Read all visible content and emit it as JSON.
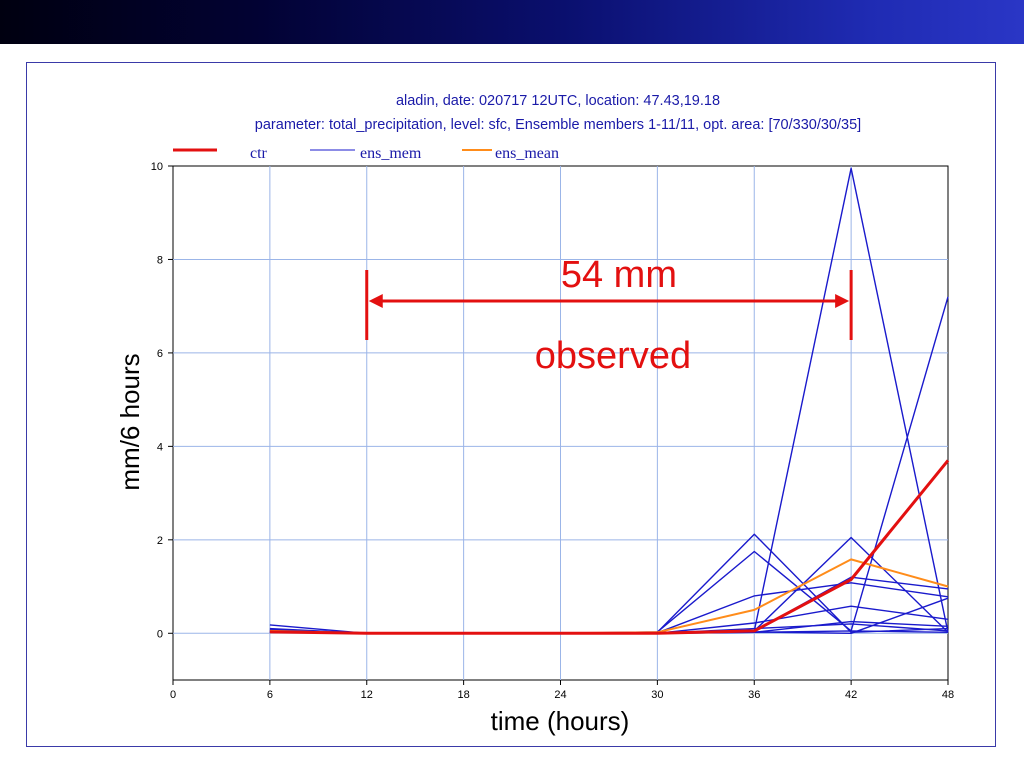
{
  "chart_data": {
    "type": "line",
    "title": "aladin, date: 020717 12UTC,   location: 47.43,19.18",
    "subtitle": "parameter: total_precipitation, level: sfc, Ensemble members 1-11/11, opt. area: [70/330/30/35]",
    "xlabel": "time (hours)",
    "ylabel": "mm/6 hours",
    "xlim": [
      0,
      48
    ],
    "ylim": [
      -1,
      10
    ],
    "x_ticks": [
      0,
      6,
      12,
      18,
      24,
      30,
      36,
      42,
      48
    ],
    "y_ticks": [
      0,
      2,
      4,
      6,
      8,
      10
    ],
    "grid": true,
    "legend_position": "top-left",
    "legend": [
      {
        "label": "ctr",
        "color": "#e31010"
      },
      {
        "label": "ens_mem",
        "color": "#1a1acc"
      },
      {
        "label": "ens_mean",
        "color": "#ff8c1a"
      }
    ],
    "x": [
      6,
      12,
      18,
      24,
      30,
      36,
      42,
      48
    ],
    "series": [
      {
        "name": "ctr",
        "color": "#e31010",
        "values": [
          0.03,
          0,
          0,
          0,
          0,
          0.05,
          1.15,
          3.7
        ]
      },
      {
        "name": "ens_mean",
        "color": "#ff8c1a",
        "values": [
          0.05,
          0,
          0,
          0,
          0.02,
          0.5,
          1.58,
          1.0
        ]
      },
      {
        "name": "ens_mem",
        "color": "#1a1acc",
        "values": [
          0.18,
          0,
          0,
          0,
          0.02,
          0.05,
          9.95,
          0.02
        ]
      },
      {
        "name": "ens_mem",
        "color": "#1a1acc",
        "values": [
          0.1,
          0,
          0,
          0,
          0.03,
          1.75,
          0.05,
          7.2
        ]
      },
      {
        "name": "ens_mem",
        "color": "#1a1acc",
        "values": [
          0.08,
          0,
          0,
          0,
          0.02,
          2.12,
          0.02,
          0.1
        ]
      },
      {
        "name": "ens_mem",
        "color": "#1a1acc",
        "values": [
          0.05,
          0,
          0,
          0,
          0.01,
          0.8,
          1.08,
          0.78
        ]
      },
      {
        "name": "ens_mem",
        "color": "#1a1acc",
        "values": [
          0.06,
          0,
          0,
          0,
          0.02,
          0.05,
          2.05,
          0.02
        ]
      },
      {
        "name": "ens_mem",
        "color": "#1a1acc",
        "values": [
          0.04,
          0,
          0,
          0,
          0,
          0.22,
          0.58,
          0.3
        ]
      },
      {
        "name": "ens_mem",
        "color": "#1a1acc",
        "values": [
          0.03,
          0,
          0,
          0,
          0,
          0.05,
          1.2,
          0.95
        ]
      },
      {
        "name": "ens_mem",
        "color": "#1a1acc",
        "values": [
          0.02,
          0,
          0,
          0,
          0,
          0.1,
          0.2,
          0.05
        ]
      },
      {
        "name": "ens_mem",
        "color": "#1a1acc",
        "values": [
          0.02,
          0,
          0,
          0,
          0,
          0.02,
          0.25,
          0.15
        ]
      },
      {
        "name": "ens_mem",
        "color": "#1a1acc",
        "values": [
          0.02,
          0,
          0,
          0,
          0,
          0.03,
          0,
          0.75
        ]
      },
      {
        "name": "ens_mem",
        "color": "#1a1acc",
        "values": [
          0.02,
          0,
          0,
          0,
          0,
          0.02,
          0.05,
          0.02
        ]
      }
    ],
    "annotation": {
      "value_text": "54 mm",
      "note_text": "observed",
      "x_start": 12,
      "x_end": 42,
      "color": "#e31010"
    }
  }
}
